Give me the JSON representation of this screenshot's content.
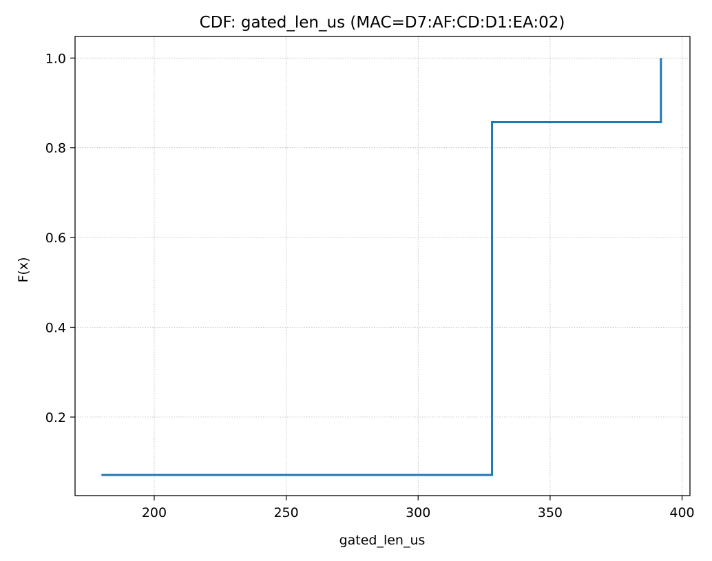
{
  "chart_data": {
    "type": "line",
    "step": true,
    "title": "CDF: gated_len_us (MAC=D7:AF:CD:D1:EA:02)",
    "xlabel": "gated_len_us",
    "ylabel": "F(x)",
    "xlim": [
      170,
      403
    ],
    "ylim": [
      0.025,
      1.048
    ],
    "xticks": [
      200,
      250,
      300,
      350,
      400
    ],
    "yticks": [
      0.2,
      0.4,
      0.6,
      0.8,
      1.0
    ],
    "ytick_labels": [
      "0.2",
      "0.4",
      "0.6",
      "0.8",
      "1.0"
    ],
    "grid": true,
    "line_color": "#1f77b4",
    "series": [
      {
        "x": [
          180,
          328,
          328,
          392,
          392
        ],
        "y": [
          0.071,
          0.071,
          0.857,
          0.857,
          1.0
        ]
      }
    ]
  }
}
